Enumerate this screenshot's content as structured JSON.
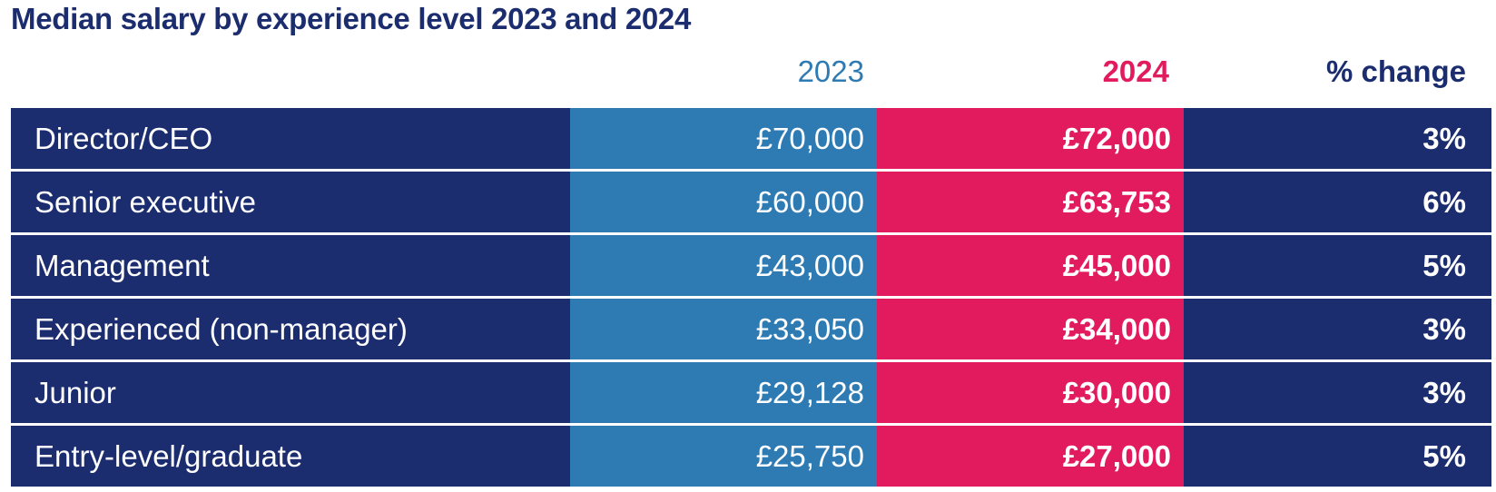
{
  "chart_data": {
    "type": "table",
    "title": "Median salary by experience level 2023 and 2024",
    "columns": [
      "",
      "2023",
      "2024",
      "% change"
    ],
    "rows": [
      {
        "label": "Director/CEO",
        "y2023": "£70,000",
        "y2024": "£72,000",
        "change": "3%"
      },
      {
        "label": "Senior executive",
        "y2023": "£60,000",
        "y2024": "£63,753",
        "change": "6%"
      },
      {
        "label": "Management",
        "y2023": "£43,000",
        "y2024": "£45,000",
        "change": "5%"
      },
      {
        "label": "Experienced (non-manager)",
        "y2023": "£33,050",
        "y2024": "£34,000",
        "change": "3%"
      },
      {
        "label": "Junior",
        "y2023": "£29,128",
        "y2024": "£30,000",
        "change": "3%"
      },
      {
        "label": "Entry-level/graduate",
        "y2023": "£25,750",
        "y2024": "£27,000",
        "change": "5%"
      }
    ],
    "series": [
      {
        "name": "2023",
        "values": [
          70000,
          60000,
          43000,
          33050,
          29128,
          25750
        ]
      },
      {
        "name": "2024",
        "values": [
          72000,
          63753,
          45000,
          34000,
          30000,
          27000
        ]
      },
      {
        "name": "% change",
        "values": [
          3,
          6,
          5,
          3,
          3,
          5
        ]
      }
    ]
  },
  "colors": {
    "navy": "#1b2d6e",
    "blue_2023": "#2e7bb4",
    "pink_2024": "#e21b5f",
    "text_on_fill": "#ffffff"
  }
}
